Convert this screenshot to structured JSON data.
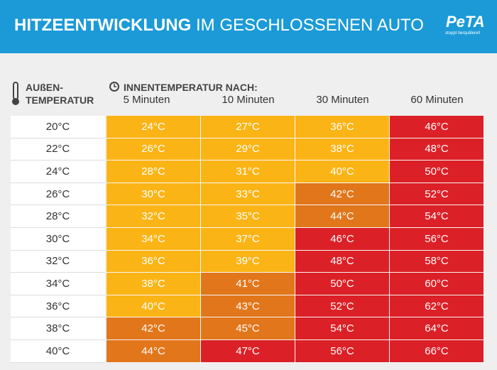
{
  "header": {
    "title_bold": "HITZEENTWICKLUNG",
    "title_rest": "IM GESCHLOSSENEN AUTO",
    "logo": "PeTA",
    "logo_tagline": "stoppt tierquälerei!"
  },
  "table": {
    "outside_header": [
      "AUßEN-",
      "TEMPERATUR"
    ],
    "inside_header": "INNENTEMPERATUR NACH:",
    "columns": [
      "5 Minuten",
      "10 Minuten",
      "30 Minuten",
      "60 Minuten"
    ],
    "rows": [
      [
        "20°C",
        "24°C",
        "27°C",
        "36°C",
        "46°C"
      ],
      [
        "22°C",
        "26°C",
        "29°C",
        "38°C",
        "48°C"
      ],
      [
        "24°C",
        "28°C",
        "31°C",
        "40°C",
        "50°C"
      ],
      [
        "26°C",
        "30°C",
        "33°C",
        "42°C",
        "52°C"
      ],
      [
        "28°C",
        "32°C",
        "35°C",
        "44°C",
        "54°C"
      ],
      [
        "30°C",
        "34°C",
        "37°C",
        "46°C",
        "56°C"
      ],
      [
        "32°C",
        "36°C",
        "39°C",
        "48°C",
        "58°C"
      ],
      [
        "34°C",
        "38°C",
        "41°C",
        "50°C",
        "60°C"
      ],
      [
        "36°C",
        "40°C",
        "43°C",
        "52°C",
        "62°C"
      ],
      [
        "38°C",
        "42°C",
        "45°C",
        "54°C",
        "64°C"
      ],
      [
        "40°C",
        "44°C",
        "47°C",
        "56°C",
        "66°C"
      ]
    ],
    "cell_colors": [
      [
        "#fbb416",
        "#fbb416",
        "#fbb416",
        "#dc2027"
      ],
      [
        "#fbb416",
        "#fbb416",
        "#fbb416",
        "#dc2027"
      ],
      [
        "#fbb416",
        "#fbb416",
        "#fbb416",
        "#dc2027"
      ],
      [
        "#fbb416",
        "#fbb416",
        "#e2761b",
        "#dc2027"
      ],
      [
        "#fbb416",
        "#fbb416",
        "#e2761b",
        "#dc2027"
      ],
      [
        "#fbb416",
        "#fbb416",
        "#dc2027",
        "#dc2027"
      ],
      [
        "#fbb416",
        "#fbb416",
        "#dc2027",
        "#dc2027"
      ],
      [
        "#fbb416",
        "#e2761b",
        "#dc2027",
        "#dc2027"
      ],
      [
        "#fbb416",
        "#e2761b",
        "#dc2027",
        "#dc2027"
      ],
      [
        "#e2761b",
        "#e2761b",
        "#dc2027",
        "#dc2027"
      ],
      [
        "#e2761b",
        "#dc2027",
        "#dc2027",
        "#dc2027"
      ]
    ]
  }
}
